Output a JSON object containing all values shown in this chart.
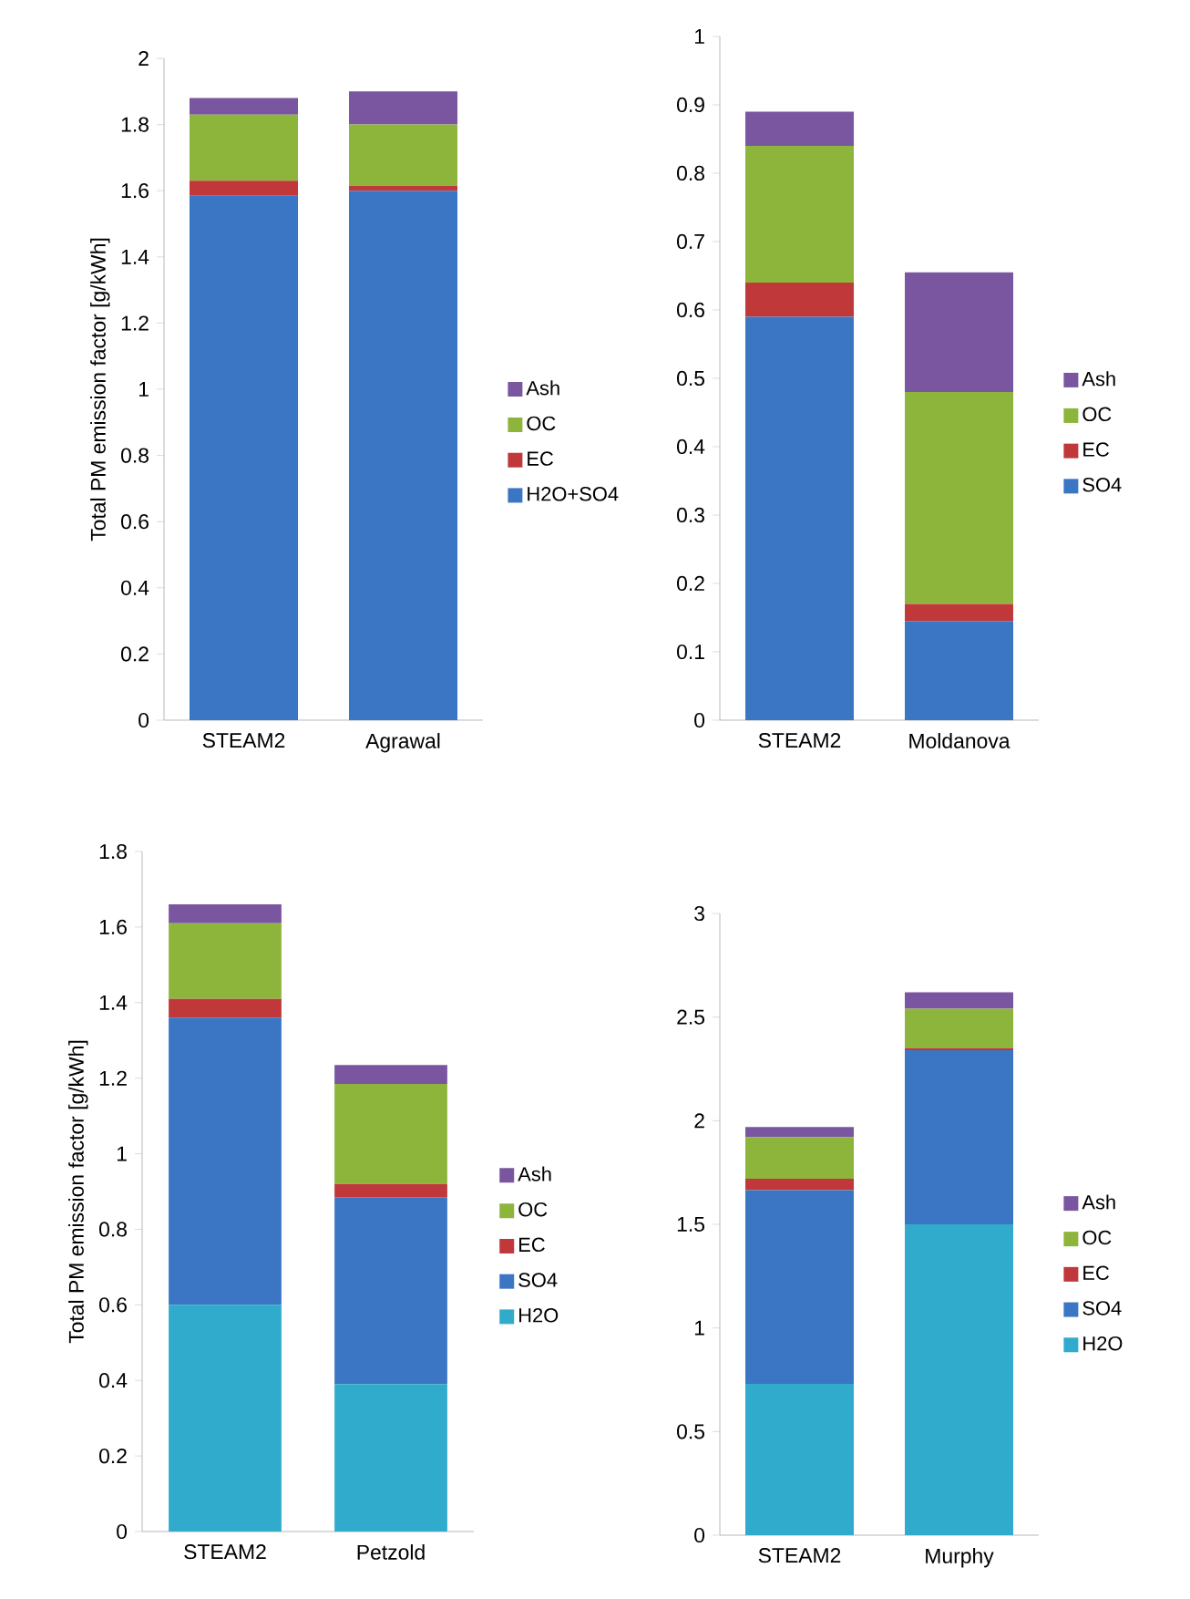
{
  "chart_data": [
    {
      "type": "bar",
      "stacked": true,
      "legend": "right",
      "ylabel": "Total PM emission factor [g/kWh]",
      "categories": [
        "STEAM2",
        "Agrawal"
      ],
      "ylim": [
        0,
        2
      ],
      "yticks": [
        0,
        0.2,
        0.4,
        0.6,
        0.8,
        1,
        1.2,
        1.4,
        1.6,
        1.8,
        2
      ],
      "series": [
        {
          "name": "H2O+SO4",
          "color": "#3a76c4",
          "values": [
            1.585,
            1.6
          ]
        },
        {
          "name": "EC",
          "color": "#c0383a",
          "values": [
            0.045,
            0.015
          ]
        },
        {
          "name": "OC",
          "color": "#8db53c",
          "values": [
            0.2,
            0.185
          ]
        },
        {
          "name": "Ash",
          "color": "#7a55a0",
          "values": [
            0.05,
            0.1
          ]
        }
      ]
    },
    {
      "type": "bar",
      "stacked": true,
      "legend": "right",
      "categories": [
        "STEAM2",
        "Moldanova"
      ],
      "ylim": [
        0,
        1
      ],
      "yticks": [
        0,
        0.1,
        0.2,
        0.3,
        0.4,
        0.5,
        0.6,
        0.7,
        0.8,
        0.9,
        1
      ],
      "series": [
        {
          "name": "SO4",
          "color": "#3a76c4",
          "values": [
            0.59,
            0.145
          ]
        },
        {
          "name": "EC",
          "color": "#c0383a",
          "values": [
            0.05,
            0.025
          ]
        },
        {
          "name": "OC",
          "color": "#8db53c",
          "values": [
            0.2,
            0.31
          ]
        },
        {
          "name": "Ash",
          "color": "#7a55a0",
          "values": [
            0.05,
            0.175
          ]
        }
      ]
    },
    {
      "type": "bar",
      "stacked": true,
      "legend": "right",
      "ylabel": "Total PM emission factor [g/kWh]",
      "categories": [
        "STEAM2",
        "Petzold"
      ],
      "ylim": [
        0,
        1.8
      ],
      "yticks": [
        0,
        0.2,
        0.4,
        0.6,
        0.8,
        1,
        1.2,
        1.4,
        1.6,
        1.8
      ],
      "series": [
        {
          "name": "H2O",
          "color": "#31abcc",
          "values": [
            0.6,
            0.39
          ]
        },
        {
          "name": "SO4",
          "color": "#3a76c4",
          "values": [
            0.76,
            0.495
          ]
        },
        {
          "name": "EC",
          "color": "#c0383a",
          "values": [
            0.05,
            0.035
          ]
        },
        {
          "name": "OC",
          "color": "#8db53c",
          "values": [
            0.2,
            0.265
          ]
        },
        {
          "name": "Ash",
          "color": "#7a55a0",
          "values": [
            0.05,
            0.05
          ]
        }
      ]
    },
    {
      "type": "bar",
      "stacked": true,
      "legend": "right",
      "categories": [
        "STEAM2",
        "Murphy"
      ],
      "ylim": [
        0,
        3
      ],
      "yticks": [
        0,
        0.5,
        1,
        1.5,
        2,
        2.5,
        3
      ],
      "series": [
        {
          "name": "H2O",
          "color": "#31abcc",
          "values": [
            0.73,
            1.5
          ]
        },
        {
          "name": "SO4",
          "color": "#3a76c4",
          "values": [
            0.935,
            0.84
          ]
        },
        {
          "name": "EC",
          "color": "#c0383a",
          "values": [
            0.055,
            0.01
          ]
        },
        {
          "name": "OC",
          "color": "#8db53c",
          "values": [
            0.2,
            0.19
          ]
        },
        {
          "name": "Ash",
          "color": "#7a55a0",
          "values": [
            0.05,
            0.08
          ]
        }
      ]
    }
  ]
}
